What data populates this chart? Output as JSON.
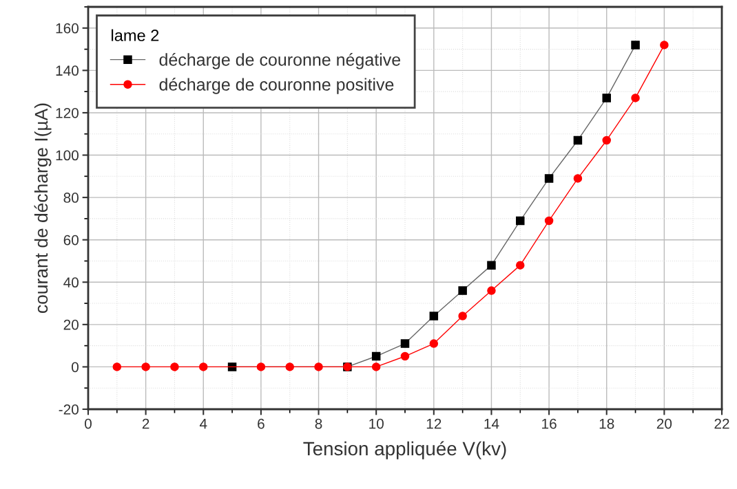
{
  "chart_data": {
    "type": "line",
    "xlabel": "Tension appliquée V(kv)",
    "ylabel": "courant de décharge I(µA)",
    "legend_title": "lame 2",
    "legend": "top left",
    "grid": true,
    "line_style": "solid",
    "xlim": [
      0,
      22
    ],
    "xticks": [
      0,
      2,
      4,
      6,
      8,
      10,
      12,
      14,
      16,
      18,
      20,
      22
    ],
    "ylim": [
      -20,
      170
    ],
    "yticks": [
      -20,
      0,
      20,
      40,
      60,
      80,
      100,
      120,
      140,
      160
    ],
    "series": [
      {
        "name": "décharge de couronne négative",
        "color": "#000000",
        "marker": "square",
        "x": [
          5,
          9,
          10,
          11,
          12,
          13,
          14,
          15,
          16,
          17,
          18,
          19
        ],
        "values": [
          0,
          0,
          5,
          11,
          24,
          36,
          48,
          69,
          89,
          107,
          127,
          152
        ]
      },
      {
        "name": "décharge de couronne positive",
        "color": "#ff0000",
        "marker": "circle",
        "x": [
          1,
          2,
          3,
          4,
          6,
          7,
          8,
          9,
          10,
          11,
          12,
          13,
          14,
          15,
          16,
          17,
          18,
          19,
          20
        ],
        "values": [
          0,
          0,
          0,
          0,
          0,
          0,
          0,
          0,
          0,
          5,
          11,
          24,
          36,
          48,
          69,
          89,
          107,
          127,
          152
        ]
      }
    ]
  }
}
